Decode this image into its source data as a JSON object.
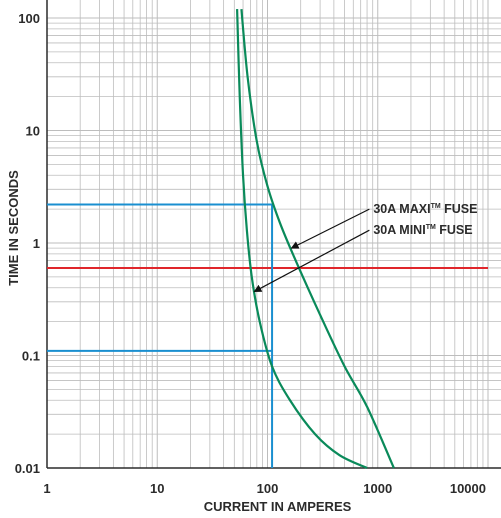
{
  "chart_data": {
    "type": "line",
    "title": "",
    "xlabel": "CURRENT IN AMPERES",
    "ylabel": "TIME IN SECONDS",
    "x_scale": "log",
    "y_scale": "log",
    "xlim": [
      1,
      10000
    ],
    "ylim": [
      0.01,
      100
    ],
    "grid": true,
    "x_ticks": [
      {
        "value": 1,
        "label": "1"
      },
      {
        "value": 10,
        "label": "10"
      },
      {
        "value": 100,
        "label": "100"
      },
      {
        "value": 1000,
        "label": "1000"
      },
      {
        "value": 10000,
        "label": "10000"
      }
    ],
    "y_ticks": [
      {
        "value": 0.01,
        "label": "0.01"
      },
      {
        "value": 0.1,
        "label": "0.1"
      },
      {
        "value": 1,
        "label": "1"
      },
      {
        "value": 10,
        "label": "10"
      },
      {
        "value": 100,
        "label": "100"
      }
    ],
    "series": [
      {
        "name": "30A MAXI FUSE",
        "color": "#0a8a5a",
        "x": [
          58,
          66,
          80,
          100,
          130,
          180,
          300,
          500,
          800,
          1400
        ],
        "y": [
          120,
          30,
          8,
          3.2,
          1.5,
          0.7,
          0.23,
          0.08,
          0.035,
          0.01
        ]
      },
      {
        "name": "30A MINI FUSE",
        "color": "#0a8a5a",
        "x": [
          53,
          56,
          60,
          65,
          72,
          85,
          110,
          160,
          270,
          450,
          800
        ],
        "y": [
          120,
          20,
          4,
          1.3,
          0.5,
          0.2,
          0.08,
          0.04,
          0.02,
          0.013,
          0.01
        ]
      }
    ],
    "reference_lines": [
      {
        "orientation": "horizontal",
        "y": 0.6,
        "color": "#e0262b"
      },
      {
        "orientation": "horizontal",
        "y": 2.2,
        "x_to": 110,
        "color": "#1a8fd0"
      },
      {
        "orientation": "horizontal",
        "y": 0.11,
        "x_to": 110,
        "color": "#1a8fd0"
      },
      {
        "orientation": "vertical",
        "x": 110,
        "y_from": 0.01,
        "y_to": 2.2,
        "color": "#1a8fd0"
      }
    ],
    "annotations": [
      {
        "text": "30A MAXI",
        "sup": "TM",
        "suffix": " FUSE",
        "x": 250,
        "y": 2.0,
        "arrow_to": {
          "x": 165,
          "y": 0.9
        }
      },
      {
        "text": "30A MINI",
        "sup": "TM",
        "suffix": " FUSE",
        "x": 250,
        "y": 1.3,
        "arrow_to": {
          "x": 76,
          "y": 0.37
        }
      }
    ],
    "colors": {
      "grid": "#bdbdbd",
      "axis": "#2b2b2b",
      "curve": "#0a8a5a",
      "red": "#e0262b",
      "blue": "#1a8fd0"
    }
  }
}
